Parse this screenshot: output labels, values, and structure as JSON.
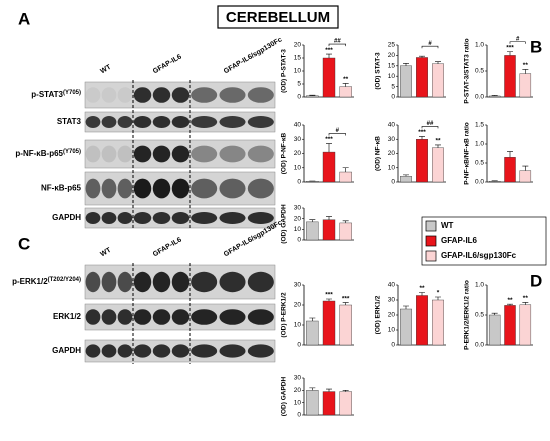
{
  "title": "CEREBELLUM",
  "panel_letters": [
    "A",
    "B",
    "C",
    "D"
  ],
  "legend": [
    {
      "name": "WT",
      "color": "#c8c8c8"
    },
    {
      "name": "GFAP-IL6",
      "color": "#e8141b"
    },
    {
      "name": "GFAP-IL6/sgp130Fc",
      "color": "#fbd4d4"
    }
  ],
  "blots": [
    {
      "groups": [
        "WT",
        "GFAP-IL6",
        "GFAP-IL6/sgp130Fc"
      ],
      "rows": [
        {
          "label": "p-STAT3",
          "sup": "(Y705)"
        },
        {
          "label": "STAT3"
        },
        {
          "label": "p-NF-κB-p65",
          "sup": "(Y705)"
        },
        {
          "label": "NF-κB-p65"
        },
        {
          "label": "GAPDH"
        }
      ]
    },
    {
      "groups": [
        "WT",
        "GFAP-IL6",
        "GFAP-IL6/sgp130Fc"
      ],
      "rows": [
        {
          "label": "p-ERK1/2",
          "sup": "(T202/Y204)"
        },
        {
          "label": "ERK1/2"
        },
        {
          "label": "GAPDH"
        }
      ]
    }
  ],
  "chart_data": [
    {
      "type": "bar",
      "ylabel": "(OD) P-STAT-3",
      "values": [
        0.5,
        15,
        4
      ],
      "errors": [
        0.2,
        1.5,
        1.2
      ],
      "ylim": [
        0,
        20
      ],
      "yticks": [
        0,
        5,
        10,
        15,
        20
      ],
      "stars": [
        null,
        "***",
        "**"
      ],
      "bracket": "##"
    },
    {
      "type": "bar",
      "ylabel": "(OD) STAT-3",
      "values": [
        15,
        19,
        16
      ],
      "errors": [
        1.2,
        0.6,
        1.0
      ],
      "ylim": [
        0,
        25
      ],
      "yticks": [
        0,
        5,
        10,
        15,
        20,
        25
      ],
      "stars": [
        null,
        null,
        null
      ],
      "bracket": "#"
    },
    {
      "type": "bar",
      "ylabel": "P-STAT-3/STAT3 ratio",
      "values": [
        0.02,
        0.8,
        0.45
      ],
      "errors": [
        0.01,
        0.07,
        0.08
      ],
      "ylim": [
        0,
        1
      ],
      "yticks": [
        {
          "value": 0,
          "label": "0.0"
        },
        {
          "value": 0.5,
          "label": "0.5"
        },
        {
          "value": 1,
          "label": "1.0"
        }
      ],
      "stars": [
        null,
        "***",
        "**"
      ],
      "bracket": "#"
    },
    {
      "type": "bar",
      "ylabel": "(OD) P-NF-κB",
      "values": [
        0.5,
        21,
        7
      ],
      "errors": [
        0.2,
        6,
        3
      ],
      "ylim": [
        0,
        40
      ],
      "yticks": [
        0,
        10,
        20,
        30,
        40
      ],
      "stars": [
        null,
        "***",
        null
      ],
      "bracket": "#"
    },
    {
      "type": "bar",
      "ylabel": "(OD) NF-κB",
      "values": [
        4,
        30,
        24
      ],
      "errors": [
        1,
        2,
        2
      ],
      "ylim": [
        0,
        40
      ],
      "yticks": [
        0,
        10,
        20,
        30,
        40
      ],
      "stars": [
        null,
        "***",
        "**"
      ],
      "bracket": "##"
    },
    {
      "type": "bar",
      "ylabel": "P-NF-κB/NF-κB ratio",
      "values": [
        0.02,
        0.65,
        0.3
      ],
      "errors": [
        0.01,
        0.15,
        0.12
      ],
      "ylim": [
        0,
        1.5
      ],
      "yticks": [
        {
          "value": 0,
          "label": "0.0"
        },
        {
          "value": 0.5,
          "label": "0.5"
        },
        {
          "value": 1,
          "label": "1.0"
        },
        {
          "value": 1.5,
          "label": "1.5"
        }
      ],
      "stars": [
        null,
        null,
        null
      ],
      "bracket": null
    },
    {
      "type": "bar",
      "ylabel": "(OD) GAPDH",
      "values": [
        17,
        19,
        16
      ],
      "errors": [
        2,
        3,
        2
      ],
      "ylim": [
        0,
        30
      ],
      "yticks": [
        0,
        10,
        20,
        30
      ],
      "stars": [
        null,
        null,
        null
      ],
      "bracket": null
    },
    {
      "type": "bar",
      "ylabel": "(OD) P-ERK1/2",
      "values": [
        12,
        22,
        20
      ],
      "errors": [
        1.5,
        1,
        1.2
      ],
      "ylim": [
        0,
        30
      ],
      "yticks": [
        0,
        10,
        20,
        30
      ],
      "stars": [
        null,
        "***",
        "***"
      ],
      "bracket": null
    },
    {
      "type": "bar",
      "ylabel": "(OD) ERK1/2",
      "values": [
        24,
        33,
        30
      ],
      "errors": [
        2,
        2,
        2
      ],
      "ylim": [
        0,
        40
      ],
      "yticks": [
        0,
        10,
        20,
        30,
        40
      ],
      "stars": [
        null,
        "**",
        "*"
      ],
      "bracket": null
    },
    {
      "type": "bar",
      "ylabel": "P-ERK1/2/ERK1/2 ratio",
      "values": [
        0.5,
        0.66,
        0.67
      ],
      "errors": [
        0.03,
        0.02,
        0.04
      ],
      "ylim": [
        0,
        1
      ],
      "yticks": [
        {
          "value": 0,
          "label": "0.0"
        },
        {
          "value": 0.5,
          "label": "0.5"
        },
        {
          "value": 1,
          "label": "1.0"
        }
      ],
      "stars": [
        null,
        "**",
        "**"
      ],
      "bracket": null
    },
    {
      "type": "bar",
      "ylabel": "(OD) GAPDH",
      "values": [
        20,
        19,
        19
      ],
      "errors": [
        2,
        2,
        1
      ],
      "ylim": [
        0,
        30
      ],
      "yticks": [
        0,
        10,
        20,
        30
      ],
      "stars": [
        null,
        null,
        null
      ],
      "bracket": null
    }
  ]
}
